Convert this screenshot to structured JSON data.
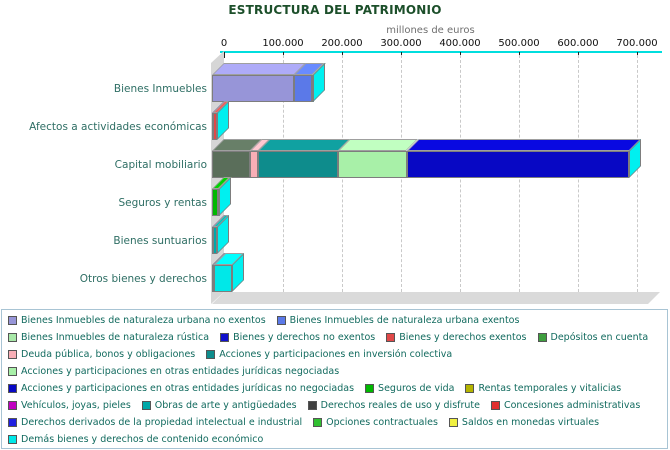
{
  "title": "ESTRUCTURA DEL PATRIMONIO",
  "axis": {
    "unit_label": "millones de euros",
    "ticks": [
      "0",
      "100.000",
      "200.000",
      "300.000",
      "400.000",
      "500.000",
      "600.000",
      "700.000"
    ],
    "tick_values": [
      0,
      100000,
      200000,
      300000,
      400000,
      500000,
      600000,
      700000
    ]
  },
  "chart_data": {
    "type": "bar",
    "orientation": "horizontal",
    "stacked": true,
    "title": "ESTRUCTURA DEL PATRIMONIO",
    "xlabel": "millones de euros",
    "xlim": [
      0,
      700000
    ],
    "grid": "dashed-vertical",
    "legend_position": "bottom",
    "style": "3d",
    "end_cap_color": "#00f0f0",
    "categories": [
      "Bienes Inmuebles",
      "Afectos a actividades económicas",
      "Capital mobiliario",
      "Seguros y rentas",
      "Bienes suntuarios",
      "Otros bienes y derechos"
    ],
    "series": [
      {
        "name": "Bienes Inmuebles de naturaleza urbana no exentos",
        "color": "#9795d8",
        "values": [
          139000,
          0,
          0,
          0,
          0,
          0
        ]
      },
      {
        "name": "Bienes Inmuebles de naturaleza urbana exentos",
        "color": "#5b79e8",
        "values": [
          31000,
          0,
          0,
          0,
          0,
          0
        ]
      },
      {
        "name": "Bienes Inmuebles de naturaleza rústica",
        "color": "#a8e8a8",
        "values": [
          2000,
          0,
          0,
          0,
          0,
          0
        ]
      },
      {
        "name": "Bienes y derechos no exentos",
        "color": "#1010cc",
        "values": [
          0,
          1000,
          0,
          0,
          0,
          0
        ]
      },
      {
        "name": "Bienes y derechos exentos",
        "color": "#e04848",
        "values": [
          0,
          7000,
          0,
          0,
          0,
          0
        ]
      },
      {
        "name": "Depósitos en cuenta",
        "color": "#3e9e3e",
        "bar_color": "#5a6e5a",
        "values": [
          0,
          0,
          64000,
          0,
          0,
          0
        ]
      },
      {
        "name": "Deuda pública, bonos y obligaciones",
        "color": "#f8aeb6",
        "values": [
          0,
          0,
          14000,
          0,
          0,
          0
        ]
      },
      {
        "name": "Acciones y participaciones en inversión colectiva",
        "color": "#0e8c8c",
        "values": [
          0,
          0,
          136000,
          0,
          0,
          0
        ]
      },
      {
        "name": "Acciones y participaciones en otras entidades jurídicas negociadas",
        "color": "#a8f0a8",
        "values": [
          0,
          0,
          116000,
          0,
          0,
          0
        ]
      },
      {
        "name": "Acciones y participaciones en otras entidades jurídicas no negociadas",
        "color": "#0808c4",
        "values": [
          0,
          0,
          377000,
          0,
          0,
          0
        ]
      },
      {
        "name": "Seguros de vida",
        "color": "#00b800",
        "values": [
          0,
          0,
          0,
          10000,
          0,
          0
        ]
      },
      {
        "name": "Rentas temporales y vitalicias",
        "color": "#b4b400",
        "values": [
          0,
          0,
          0,
          1500,
          0,
          0
        ]
      },
      {
        "name": "Vehículos, joyas, pieles",
        "color": "#c000c0",
        "values": [
          0,
          0,
          0,
          0,
          2000,
          0
        ]
      },
      {
        "name": "Obras de arte y antigüedades",
        "color": "#00a8a8",
        "values": [
          0,
          0,
          0,
          0,
          6000,
          0
        ]
      },
      {
        "name": "Derechos reales de uso y disfrute",
        "color": "#404040",
        "values": [
          0,
          0,
          0,
          0,
          0,
          1500
        ]
      },
      {
        "name": "Concesiones administrativas",
        "color": "#e03030",
        "values": [
          0,
          0,
          0,
          0,
          0,
          800
        ]
      },
      {
        "name": "Derechos derivados de la propiedad intelectual e industrial",
        "color": "#2020e0",
        "values": [
          0,
          0,
          0,
          0,
          0,
          300
        ]
      },
      {
        "name": "Opciones contractuales",
        "color": "#30c030",
        "values": [
          0,
          0,
          0,
          0,
          0,
          300
        ]
      },
      {
        "name": "Saldos en monedas virtuales",
        "color": "#f0f040",
        "values": [
          0,
          0,
          0,
          0,
          0,
          200
        ]
      },
      {
        "name": "Demás bienes y derechos de contenido económico",
        "color": "#00e8e8",
        "values": [
          0,
          0,
          0,
          0,
          0,
          30000
        ]
      }
    ],
    "legend_rows": [
      [
        0,
        1
      ],
      [
        2,
        3,
        4,
        5
      ],
      [
        6,
        7
      ],
      [
        8
      ],
      [
        9,
        10,
        11
      ],
      [
        12,
        13,
        14,
        15
      ],
      [
        16,
        17,
        18
      ],
      [
        19
      ]
    ]
  }
}
